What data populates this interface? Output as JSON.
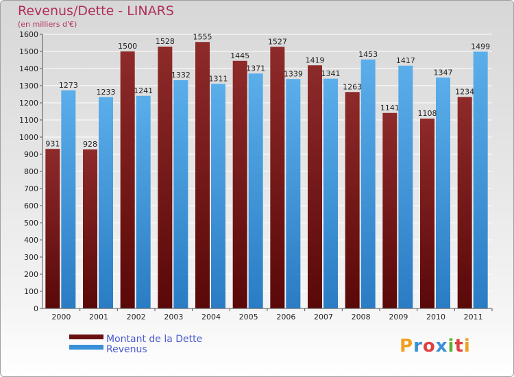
{
  "header": {
    "title": "Revenus/Dette - LINARS",
    "subtitle": "(en milliers d'€)"
  },
  "chart_data": {
    "type": "bar",
    "categories": [
      "2000",
      "2001",
      "2002",
      "2003",
      "2004",
      "2005",
      "2006",
      "2007",
      "2008",
      "2009",
      "2010",
      "2011"
    ],
    "series": [
      {
        "name": "Montant de la Dette",
        "values": [
          931,
          928,
          1500,
          1528,
          1555,
          1445,
          1527,
          1419,
          1263,
          1141,
          1108,
          1234
        ],
        "color": "#6a1010"
      },
      {
        "name": "Revenus",
        "values": [
          1273,
          1233,
          1241,
          1332,
          1311,
          1371,
          1339,
          1341,
          1453,
          1417,
          1347,
          1499
        ],
        "color": "#3a90d8"
      }
    ],
    "ylim": [
      0,
      1600
    ],
    "yticks": [
      0,
      100,
      200,
      300,
      400,
      500,
      600,
      700,
      800,
      900,
      1000,
      1100,
      1200,
      1300,
      1400,
      1500,
      1600
    ],
    "grid": true,
    "legend": "bottom-left"
  },
  "logo": {
    "letters": [
      "P",
      "r",
      "o",
      "x",
      "i",
      "t",
      "i"
    ],
    "colors": [
      "#f0a020",
      "#3a90d8",
      "#e04040",
      "#3a90d8",
      "#60b030",
      "#e04040",
      "#f0a020"
    ]
  }
}
